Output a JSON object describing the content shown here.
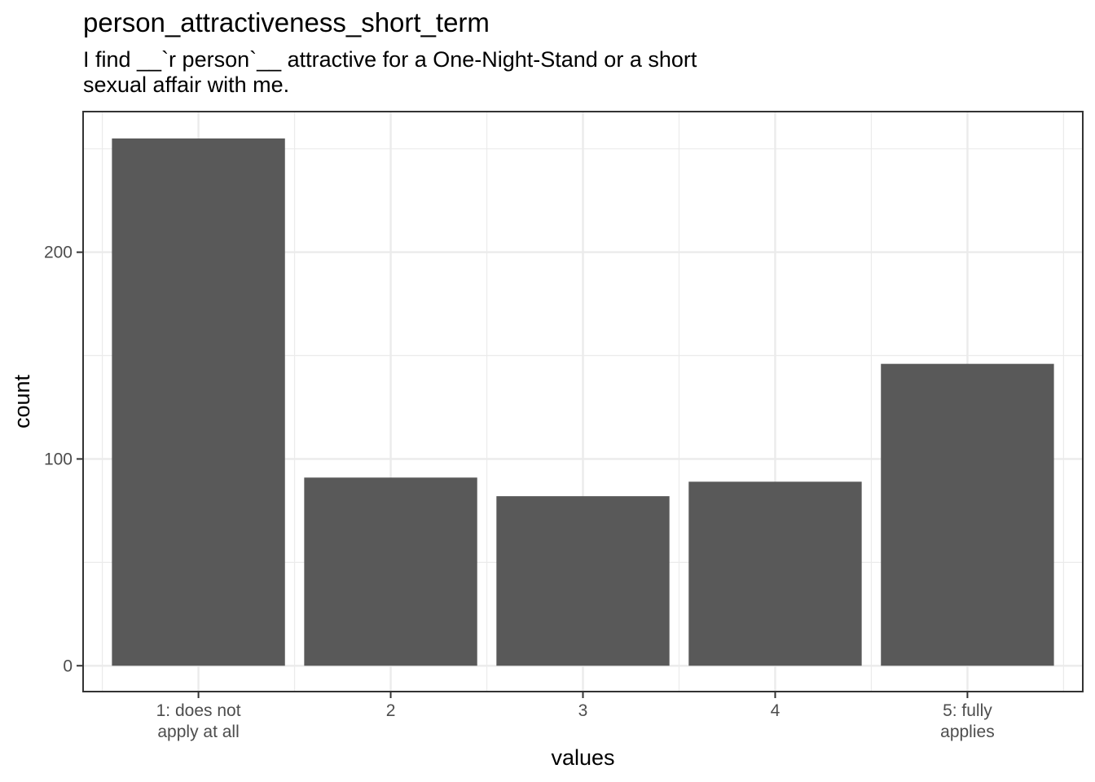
{
  "chart_data": {
    "type": "bar",
    "title": "person_attractiveness_short_term",
    "subtitle": "I find __`r person`__ attractive for a One-Night-Stand or a short\nsexual affair with me.",
    "xlabel": "values",
    "ylabel": "count",
    "categories": [
      "1: does not\napply at all",
      "2",
      "3",
      "4",
      "5: fully\napplies"
    ],
    "values": [
      255,
      91,
      82,
      89,
      146
    ],
    "ylim": [
      -12.5,
      268
    ],
    "yticks": [
      0,
      100,
      200
    ],
    "bar_color": "#595959",
    "grid": true,
    "theme": "bw"
  }
}
